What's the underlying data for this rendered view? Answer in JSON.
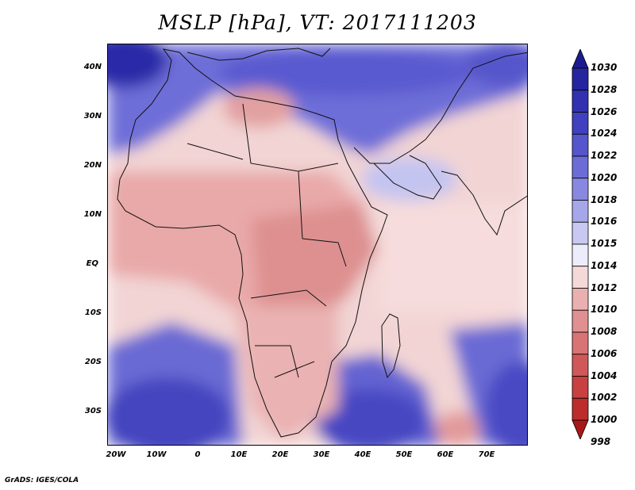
{
  "title": "MSLP [hPa], VT: 2017111203",
  "credit": "GrADS: IGES/COLA",
  "lat_labels": [
    "40N",
    "30N",
    "20N",
    "10N",
    "EQ",
    "10S",
    "20S",
    "30S"
  ],
  "lon_labels": [
    "20W",
    "10W",
    "0",
    "10E",
    "20E",
    "30E",
    "40E",
    "50E",
    "60E",
    "70E"
  ],
  "colorbar": {
    "labels": [
      "1030",
      "1028",
      "1026",
      "1024",
      "1022",
      "1020",
      "1018",
      "1016",
      "1015",
      "1014",
      "1012",
      "1010",
      "1008",
      "1006",
      "1004",
      "1002",
      "1000",
      "998"
    ],
    "colors": [
      "#1b1b8f",
      "#25259f",
      "#3232b0",
      "#4040c0",
      "#5555cc",
      "#6c6cd6",
      "#8888e0",
      "#a6a6ea",
      "#c8c8f2",
      "#ececfa",
      "#f5d8d8",
      "#eab0b0",
      "#e09090",
      "#d87474",
      "#d05858",
      "#c84040",
      "#bc2c2c",
      "#a81818"
    ]
  },
  "field_colors": {
    "ocean_high": "#7070d8",
    "high_core": "#3a3ab8",
    "land_low": "#e8a4a4",
    "weak_low": "#f4cccc",
    "neutral": "#f6eeee",
    "border": "#111111"
  }
}
